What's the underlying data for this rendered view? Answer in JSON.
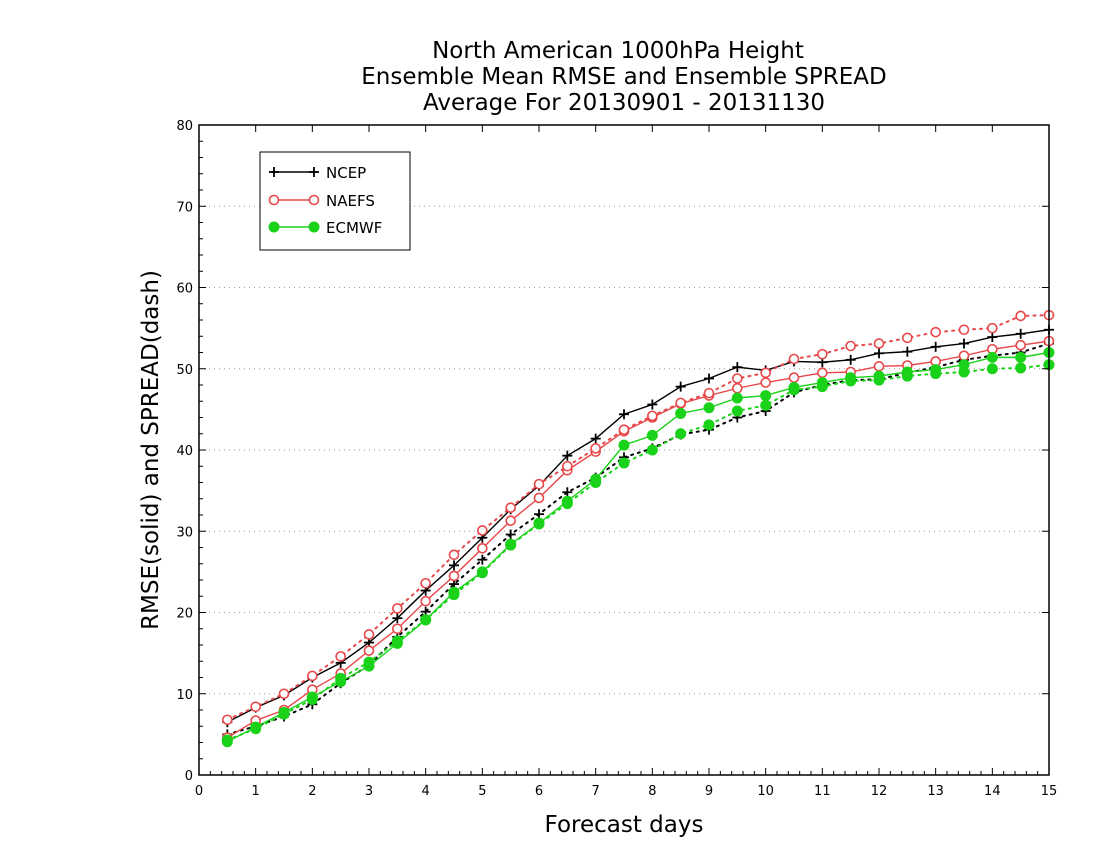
{
  "chart_data": {
    "type": "line",
    "title_lines": [
      "North American 1000hPa Height",
      "Ensemble Mean RMSE and Ensemble SPREAD",
      "Average For 20130901 - 20131130"
    ],
    "xlabel": "Forecast days",
    "ylabel": "RMSE(solid) and SPREAD(dash)",
    "xlim": [
      0,
      15
    ],
    "ylim": [
      0,
      80
    ],
    "x_ticks": [
      "0",
      "1",
      "2",
      "3",
      "4",
      "5",
      "6",
      "7",
      "8",
      "9",
      "10",
      "11",
      "12",
      "13",
      "14",
      "15"
    ],
    "y_ticks": [
      "0",
      "10",
      "20",
      "30",
      "40",
      "50",
      "60",
      "70",
      "80"
    ],
    "grid": "horizontal dotted",
    "legend_position": "top-left",
    "legend": [
      "NCEP",
      "NAEFS",
      "ECMWF"
    ],
    "colors": {
      "NCEP": "#000000",
      "NAEFS": "#e8484a",
      "ECMWF": "#19d219"
    },
    "x": [
      0.5,
      1,
      1.5,
      2,
      2.5,
      3,
      3.5,
      4,
      4.5,
      5,
      5.5,
      6,
      6.5,
      7,
      7.5,
      8,
      8.5,
      9,
      9.5,
      10,
      10.5,
      11,
      11.5,
      12,
      12.5,
      13,
      13.5,
      14,
      14.5,
      15
    ],
    "series": [
      {
        "name": "NCEP",
        "kind": "RMSE",
        "values": [
          6.5,
          8.3,
          9.8,
          12.0,
          13.8,
          16.3,
          19.3,
          22.7,
          25.8,
          29.2,
          32.7,
          35.6,
          39.3,
          41.4,
          44.4,
          45.6,
          47.8,
          48.8,
          50.2,
          49.8,
          50.9,
          50.8,
          51.1,
          51.9,
          52.1,
          52.7,
          53.1,
          53.9,
          54.3,
          54.8
        ]
      },
      {
        "name": "NCEP",
        "kind": "SPREAD",
        "values": [
          5.0,
          6.0,
          7.2,
          8.7,
          11.3,
          13.5,
          17.0,
          20.1,
          23.5,
          26.5,
          29.6,
          32.1,
          34.8,
          36.6,
          39.1,
          40.2,
          41.9,
          42.5,
          44.0,
          44.8,
          47.1,
          48.0,
          48.6,
          48.7,
          49.5,
          50.2,
          51.1,
          51.6,
          52.0,
          53.1
        ]
      },
      {
        "name": "NAEFS",
        "kind": "RMSE",
        "values": [
          4.6,
          6.7,
          8.0,
          10.5,
          12.5,
          15.3,
          18.0,
          21.4,
          24.5,
          27.9,
          31.3,
          34.1,
          37.5,
          39.8,
          42.3,
          44.0,
          45.7,
          46.7,
          47.6,
          48.3,
          48.9,
          49.5,
          49.6,
          50.3,
          50.4,
          50.9,
          51.6,
          52.4,
          52.9,
          53.4
        ]
      },
      {
        "name": "NAEFS",
        "kind": "SPREAD",
        "values": [
          6.8,
          8.4,
          10.0,
          12.2,
          14.6,
          17.3,
          20.5,
          23.6,
          27.1,
          30.1,
          32.9,
          35.8,
          38.0,
          40.2,
          42.5,
          44.2,
          45.8,
          47.0,
          48.8,
          49.5,
          51.2,
          51.8,
          52.8,
          53.1,
          53.8,
          54.5,
          54.8,
          55.0,
          56.5,
          56.6
        ]
      },
      {
        "name": "ECMWF",
        "kind": "RMSE",
        "values": [
          4.1,
          5.9,
          7.7,
          9.6,
          11.5,
          13.4,
          16.2,
          19.1,
          22.5,
          25.0,
          28.4,
          31.0,
          33.7,
          36.4,
          40.6,
          41.8,
          44.5,
          45.2,
          46.4,
          46.7,
          47.7,
          48.3,
          48.9,
          49.1,
          49.6,
          49.9,
          50.5,
          51.4,
          51.4,
          52.0
        ]
      },
      {
        "name": "ECMWF",
        "kind": "SPREAD",
        "values": [
          4.3,
          5.7,
          7.5,
          9.3,
          11.9,
          13.9,
          16.5,
          19.1,
          22.2,
          24.9,
          28.3,
          30.9,
          33.4,
          36.0,
          38.4,
          40.0,
          42.0,
          43.1,
          44.8,
          45.5,
          47.4,
          47.8,
          48.5,
          48.6,
          49.1,
          49.4,
          49.6,
          50.0,
          50.1,
          50.5
        ]
      }
    ]
  }
}
